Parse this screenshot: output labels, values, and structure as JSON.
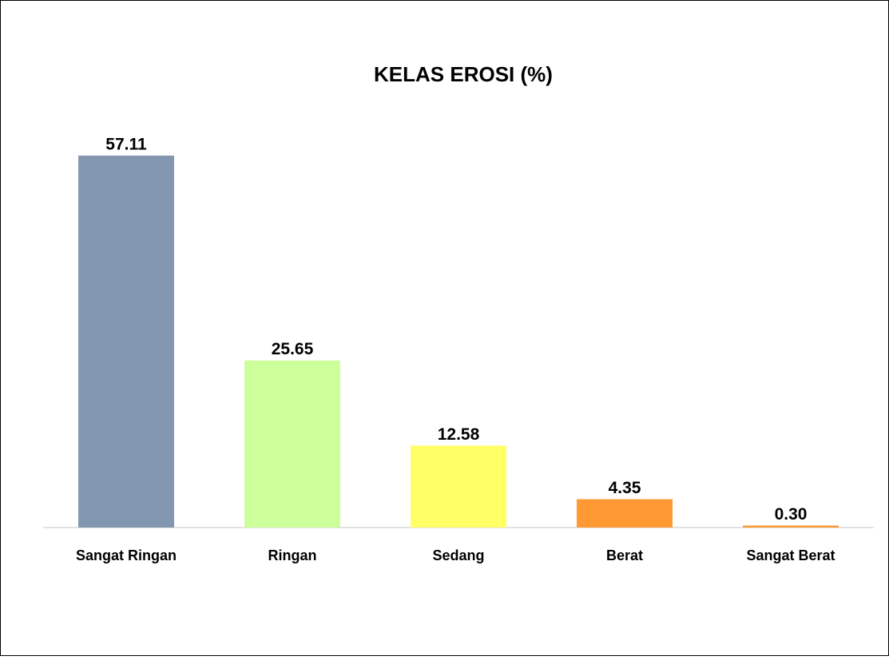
{
  "chart_data": {
    "type": "bar",
    "title": "KELAS EROSI (%)",
    "categories": [
      "Sangat Ringan",
      "Ringan",
      "Sedang",
      "Berat",
      "Sangat Berat"
    ],
    "values": [
      57.11,
      25.65,
      12.58,
      4.35,
      0.3
    ],
    "value_labels": [
      "57.11",
      "25.65",
      "12.58",
      "4.35",
      "0.30"
    ],
    "colors": [
      "#8497b0",
      "#ccff99",
      "#ffff66",
      "#ff9933",
      "#ff9933"
    ]
  }
}
